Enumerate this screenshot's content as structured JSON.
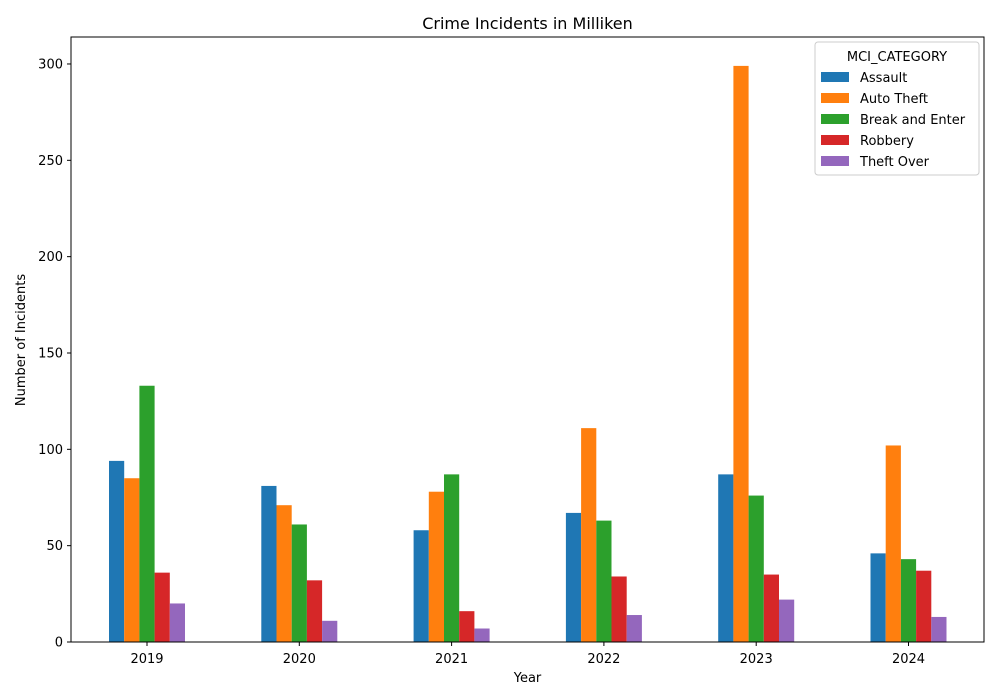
{
  "chart_data": {
    "type": "bar",
    "title": "Crime Incidents in Milliken",
    "xlabel": "Year",
    "ylabel": "Number of Incidents",
    "categories": [
      "2019",
      "2020",
      "2021",
      "2022",
      "2023",
      "2024"
    ],
    "ylim": [
      0,
      314
    ],
    "yticks": [
      0,
      50,
      100,
      150,
      200,
      250,
      300
    ],
    "grid": false,
    "legend": {
      "title": "MCI_CATEGORY",
      "placement": "top-right"
    },
    "series": [
      {
        "name": "Assault",
        "color": "#1f77b4",
        "values": [
          94,
          81,
          58,
          67,
          87,
          46
        ]
      },
      {
        "name": "Auto Theft",
        "color": "#ff7f0e",
        "values": [
          85,
          71,
          78,
          111,
          299,
          102
        ]
      },
      {
        "name": "Break and Enter",
        "color": "#2ca02c",
        "values": [
          133,
          61,
          87,
          63,
          76,
          43
        ]
      },
      {
        "name": "Robbery",
        "color": "#d62728",
        "values": [
          36,
          32,
          16,
          34,
          35,
          37
        ]
      },
      {
        "name": "Theft Over",
        "color": "#9467bd",
        "values": [
          20,
          11,
          7,
          14,
          22,
          13
        ]
      }
    ]
  }
}
